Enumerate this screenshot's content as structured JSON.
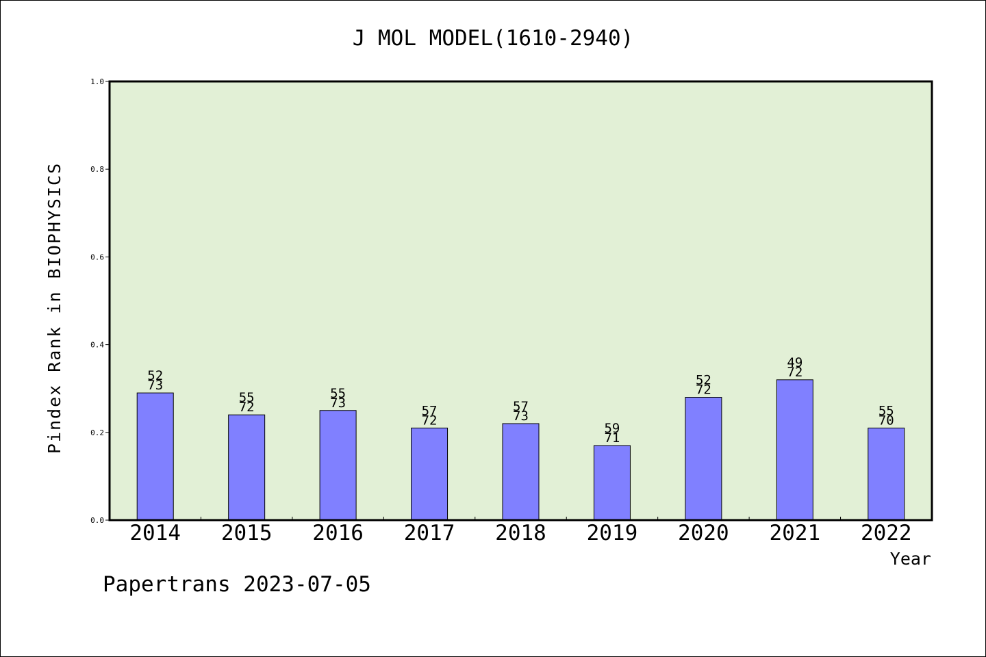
{
  "chart_data": {
    "type": "bar",
    "title": "J MOL MODEL(1610-2940)",
    "xlabel": "Year",
    "ylabel": "Pindex Rank in BIOPHYSICS",
    "ylim": [
      0,
      1.0
    ],
    "yticks": [
      "0.0",
      "0.2",
      "0.4",
      "0.6",
      "0.8",
      "1.0"
    ],
    "categories": [
      "2014",
      "2015",
      "2016",
      "2017",
      "2018",
      "2019",
      "2020",
      "2021",
      "2022"
    ],
    "values": [
      0.29,
      0.24,
      0.25,
      0.21,
      0.22,
      0.17,
      0.28,
      0.32,
      0.21
    ],
    "labels_top": [
      "52",
      "55",
      "55",
      "57",
      "57",
      "59",
      "52",
      "49",
      "55"
    ],
    "labels_bottom": [
      "73",
      "72",
      "73",
      "72",
      "73",
      "71",
      "72",
      "72",
      "70"
    ],
    "plot_background": "#e2f0d6",
    "bar_color": "#8080ff",
    "grid": false,
    "legend": "none"
  },
  "footer": "Papertrans 2023-07-05"
}
